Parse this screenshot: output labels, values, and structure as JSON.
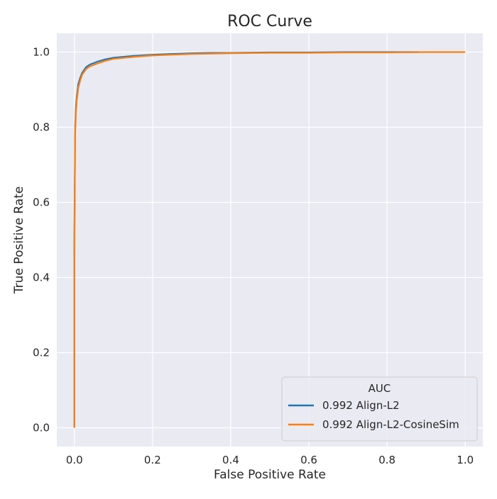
{
  "chart_data": {
    "type": "line",
    "title": "ROC Curve",
    "xlabel": "False Positive Rate",
    "ylabel": "True Positive Rate",
    "xlim": [
      -0.045,
      1.045
    ],
    "ylim": [
      -0.05,
      1.05
    ],
    "x_ticks": [
      0.0,
      0.2,
      0.4,
      0.6,
      0.8,
      1.0
    ],
    "y_ticks": [
      0.0,
      0.2,
      0.4,
      0.6,
      0.8,
      1.0
    ],
    "x_tick_labels": [
      "0.0",
      "0.2",
      "0.4",
      "0.6",
      "0.8",
      "1.0"
    ],
    "y_tick_labels": [
      "0.0",
      "0.2",
      "0.4",
      "0.6",
      "0.8",
      "1.0"
    ],
    "grid": true,
    "background": "#eaeaf2",
    "legend": {
      "title": "AUC",
      "placement": "lower-right"
    },
    "series": [
      {
        "name": "0.992 Align-L2",
        "color": "#1f77b4",
        "x": [
          0.0,
          0.0,
          0.001,
          0.002,
          0.004,
          0.006,
          0.01,
          0.015,
          0.02,
          0.03,
          0.04,
          0.06,
          0.08,
          0.1,
          0.15,
          0.2,
          0.25,
          0.3,
          0.35,
          0.4,
          0.5,
          0.6,
          0.7,
          0.8,
          0.88
        ],
        "y": [
          0.0,
          0.5,
          0.65,
          0.8,
          0.855,
          0.88,
          0.915,
          0.932,
          0.945,
          0.96,
          0.967,
          0.975,
          0.981,
          0.985,
          0.99,
          0.993,
          0.995,
          0.997,
          0.998,
          0.998,
          0.999,
          0.999,
          1.0,
          1.0,
          1.0
        ]
      },
      {
        "name": "0.992 Align-L2-CosineSim",
        "color": "#ff7f0e",
        "x": [
          0.0,
          0.0,
          0.001,
          0.002,
          0.004,
          0.006,
          0.01,
          0.015,
          0.02,
          0.03,
          0.04,
          0.06,
          0.08,
          0.1,
          0.15,
          0.2,
          0.25,
          0.3,
          0.35,
          0.4,
          0.5,
          0.6,
          0.7,
          0.8,
          0.9,
          1.0
        ],
        "y": [
          0.0,
          0.45,
          0.62,
          0.78,
          0.84,
          0.87,
          0.905,
          0.925,
          0.94,
          0.955,
          0.962,
          0.97,
          0.977,
          0.982,
          0.987,
          0.991,
          0.993,
          0.995,
          0.996,
          0.997,
          0.998,
          0.998,
          0.999,
          0.999,
          1.0,
          1.0
        ]
      }
    ]
  }
}
